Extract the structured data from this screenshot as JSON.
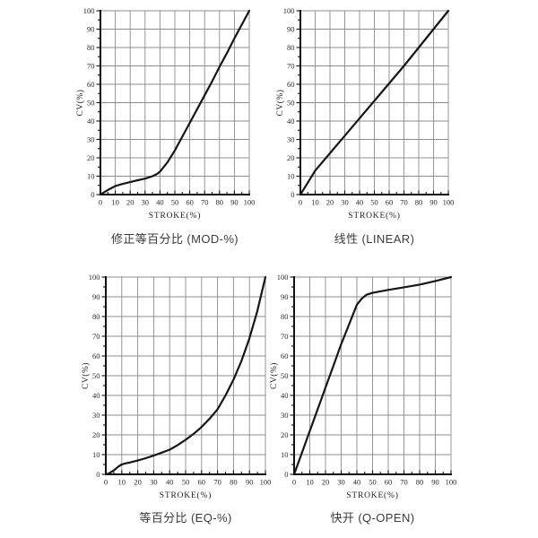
{
  "page": {
    "background": "#ffffff"
  },
  "colors": {
    "curve": "#161616",
    "axis": "#111111",
    "grid": "#8c8c8c",
    "tick_label": "#2b2b2b",
    "axis_label": "#222222",
    "title": "#3b3b3b"
  },
  "chart_data": [
    {
      "type": "line",
      "id": "mod-percent",
      "title": "修正等百分比 (MOD-%)",
      "xlabel": "STROKE(%)",
      "ylabel": "CV(%)",
      "xlim": [
        0,
        100
      ],
      "ylim": [
        0,
        100
      ],
      "x_ticks": [
        0,
        10,
        20,
        30,
        40,
        50,
        60,
        70,
        80,
        90,
        100
      ],
      "y_ticks": [
        0,
        10,
        20,
        30,
        40,
        50,
        60,
        70,
        80,
        90,
        100
      ],
      "minor_tick_step": 5,
      "grid": true,
      "legend": "none",
      "series": [
        {
          "name": "MOD-%",
          "x": [
            0,
            2,
            5,
            10,
            15,
            20,
            25,
            30,
            35,
            38,
            40,
            42,
            45,
            50,
            55,
            60,
            65,
            70,
            75,
            80,
            85,
            90,
            95,
            100
          ],
          "y": [
            0,
            1,
            2.5,
            4.7,
            5.8,
            6.8,
            7.8,
            8.7,
            10,
            11.2,
            12.5,
            14.5,
            17.5,
            24,
            31.5,
            39,
            46.5,
            54,
            61.5,
            69.5,
            77,
            85,
            92.5,
            100
          ]
        }
      ]
    },
    {
      "type": "line",
      "id": "linear",
      "title": "线性 (LINEAR)",
      "xlabel": "STROKE(%)",
      "ylabel": "CV(%)",
      "xlim": [
        0,
        100
      ],
      "ylim": [
        0,
        100
      ],
      "x_ticks": [
        0,
        10,
        20,
        30,
        40,
        50,
        60,
        70,
        80,
        90,
        100
      ],
      "y_ticks": [
        0,
        10,
        20,
        30,
        40,
        50,
        60,
        70,
        80,
        90,
        100
      ],
      "minor_tick_step": 5,
      "grid": true,
      "legend": "none",
      "series": [
        {
          "name": "LINEAR",
          "x": [
            0,
            5,
            10,
            20,
            30,
            40,
            50,
            60,
            70,
            80,
            90,
            100
          ],
          "y": [
            0,
            6.5,
            13,
            22.5,
            32,
            41.5,
            51,
            60.5,
            70,
            80,
            90,
            100
          ]
        }
      ]
    },
    {
      "type": "line",
      "id": "eq-percent",
      "title": "等百分比 (EQ-%)",
      "xlabel": "STROKE(%)",
      "ylabel": "CV(%)",
      "xlim": [
        0,
        100
      ],
      "ylim": [
        0,
        100
      ],
      "x_ticks": [
        0,
        10,
        20,
        30,
        40,
        50,
        60,
        70,
        80,
        90,
        100
      ],
      "y_ticks": [
        0,
        10,
        20,
        30,
        40,
        50,
        60,
        70,
        80,
        90,
        100
      ],
      "minor_tick_step": 5,
      "grid": true,
      "legend": "none",
      "series": [
        {
          "name": "EQ-%",
          "x": [
            0,
            2,
            5,
            8,
            10,
            12,
            15,
            20,
            25,
            30,
            35,
            40,
            45,
            50,
            55,
            60,
            65,
            70,
            75,
            80,
            85,
            90,
            95,
            100
          ],
          "y": [
            0,
            0.5,
            2,
            4,
            5,
            5.5,
            6,
            7,
            8.2,
            9.5,
            11,
            12.5,
            14.8,
            17.5,
            20.5,
            24,
            28.2,
            33,
            40,
            48,
            57.5,
            69,
            83,
            100
          ]
        }
      ]
    },
    {
      "type": "line",
      "id": "q-open",
      "title": "快开 (Q-OPEN)",
      "xlabel": "STROKE(%)",
      "ylabel": "CV(%)",
      "xlim": [
        0,
        100
      ],
      "ylim": [
        0,
        100
      ],
      "x_ticks": [
        0,
        10,
        20,
        30,
        40,
        50,
        60,
        70,
        80,
        90,
        100
      ],
      "y_ticks": [
        0,
        10,
        20,
        30,
        40,
        50,
        60,
        70,
        80,
        90,
        100
      ],
      "minor_tick_step": 5,
      "grid": true,
      "legend": "none",
      "series": [
        {
          "name": "Q-OPEN",
          "x": [
            0,
            5,
            10,
            15,
            20,
            25,
            30,
            35,
            38,
            40,
            43,
            46,
            50,
            60,
            70,
            80,
            90,
            100
          ],
          "y": [
            0,
            11,
            22,
            33,
            44,
            55,
            66,
            76,
            82,
            86,
            89,
            91,
            92,
            93.5,
            94.8,
            96.2,
            98,
            100
          ]
        }
      ]
    }
  ]
}
